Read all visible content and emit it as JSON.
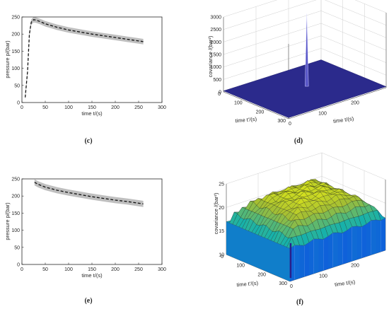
{
  "panels": [
    {
      "label": "(c)",
      "kind": "line2d",
      "xlabel": "time t/(s)",
      "ylabel": "pressure p/(bar)",
      "xlim": [
        0,
        300
      ],
      "ylim": [
        0,
        250
      ],
      "xticks": [
        "0",
        "50",
        "100",
        "150",
        "200",
        "250",
        "300"
      ],
      "yticks": [
        "0",
        "50",
        "100",
        "150",
        "200",
        "250"
      ]
    },
    {
      "label": "(d)",
      "kind": "surface3d",
      "zlabel": "covariance /(bar²)",
      "xlabel": "time t/(s)",
      "ylabel": "time t'/(s)",
      "zticks": [
        "0",
        "500",
        "1000",
        "1500",
        "2000",
        "2500",
        "3000"
      ],
      "xticks": [
        "0",
        "100",
        "200"
      ],
      "yticks": [
        "0",
        "100",
        "200",
        "300"
      ]
    },
    {
      "label": "(e)",
      "kind": "line2d",
      "xlabel": "time t/(s)",
      "ylabel": "pressure p/(bar)",
      "xlim": [
        0,
        300
      ],
      "ylim": [
        0,
        250
      ],
      "xticks": [
        "0",
        "50",
        "100",
        "150",
        "200",
        "250",
        "300"
      ],
      "yticks": [
        "0",
        "50",
        "100",
        "150",
        "200",
        "250"
      ]
    },
    {
      "label": "(f)",
      "kind": "surface3d",
      "zlabel": "covariance /(bar²)",
      "xlabel": "time t/(s)",
      "ylabel": "time t'/(s)",
      "zticks": [
        "10",
        "15",
        "20",
        "25"
      ],
      "xticks": [
        "0",
        "100",
        "200"
      ],
      "yticks": [
        "0",
        "100",
        "200",
        "300"
      ]
    }
  ],
  "chart_data": [
    {
      "type": "line",
      "panel": "(c)",
      "xlim": [
        0,
        300
      ],
      "ylim": [
        0,
        250
      ],
      "series": [
        {
          "style": "dashed-mean",
          "x": [
            7,
            12,
            16,
            20,
            25,
            30,
            40,
            50,
            75,
            100,
            125,
            150,
            175,
            200,
            225,
            250,
            260
          ],
          "y": [
            15,
            90,
            200,
            235,
            242,
            241,
            236,
            230,
            220,
            212,
            206,
            200,
            195,
            190,
            185,
            180,
            178
          ]
        },
        {
          "style": "gray-uncertainty-band",
          "halfwidth": 8
        }
      ]
    },
    {
      "type": "surface",
      "panel": "(d)",
      "zlim": [
        0,
        3000
      ],
      "peak": 2900,
      "peak_at": [
        0,
        0
      ],
      "base": 20,
      "colormap": "parula"
    },
    {
      "type": "line",
      "panel": "(e)",
      "xlim": [
        0,
        300
      ],
      "ylim": [
        0,
        250
      ],
      "series": [
        {
          "style": "dashed-mean",
          "x": [
            27,
            35,
            50,
            75,
            100,
            125,
            150,
            175,
            200,
            225,
            250,
            260
          ],
          "y": [
            240,
            234,
            226,
            217,
            210,
            204,
            198,
            193,
            188,
            184,
            179,
            177
          ]
        },
        {
          "style": "gray-uncertainty-band",
          "halfwidth": 9
        }
      ]
    },
    {
      "type": "surface",
      "panel": "(f)",
      "zlim": [
        10,
        25
      ],
      "center_dip": 10.5,
      "edge": 15,
      "plateau": 23,
      "colormap": "parula"
    }
  ],
  "colors": {
    "band": "#bfbfbf",
    "surface_dark": "#2b2a8c",
    "surface_mid": "#2fb3b0",
    "surface_top": "#f5c342"
  }
}
